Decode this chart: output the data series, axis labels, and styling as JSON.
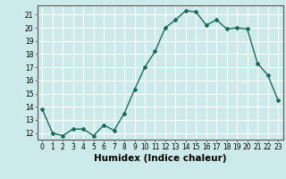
{
  "x": [
    0,
    1,
    2,
    3,
    4,
    5,
    6,
    7,
    8,
    9,
    10,
    11,
    12,
    13,
    14,
    15,
    16,
    17,
    18,
    19,
    20,
    21,
    22,
    23
  ],
  "y": [
    13.8,
    12.0,
    11.8,
    12.3,
    12.3,
    11.8,
    12.6,
    12.2,
    13.5,
    15.3,
    17.0,
    18.2,
    20.0,
    20.6,
    21.3,
    21.2,
    20.2,
    20.6,
    19.9,
    20.0,
    19.9,
    17.3,
    16.4,
    14.5
  ],
  "line_color": "#1a6b5a",
  "marker": "D",
  "marker_size": 2.0,
  "bg_color": "#cdeaea",
  "grid_color": "#ffffff",
  "xlabel": "Humidex (Indice chaleur)",
  "ylabel": "",
  "xlim": [
    -0.5,
    23.5
  ],
  "ylim": [
    11.5,
    21.7
  ],
  "yticks": [
    12,
    13,
    14,
    15,
    16,
    17,
    18,
    19,
    20,
    21
  ],
  "xticks": [
    0,
    1,
    2,
    3,
    4,
    5,
    6,
    7,
    8,
    9,
    10,
    11,
    12,
    13,
    14,
    15,
    16,
    17,
    18,
    19,
    20,
    21,
    22,
    23
  ],
  "tick_label_size": 5.5,
  "xlabel_size": 7.5,
  "line_width": 1.0
}
